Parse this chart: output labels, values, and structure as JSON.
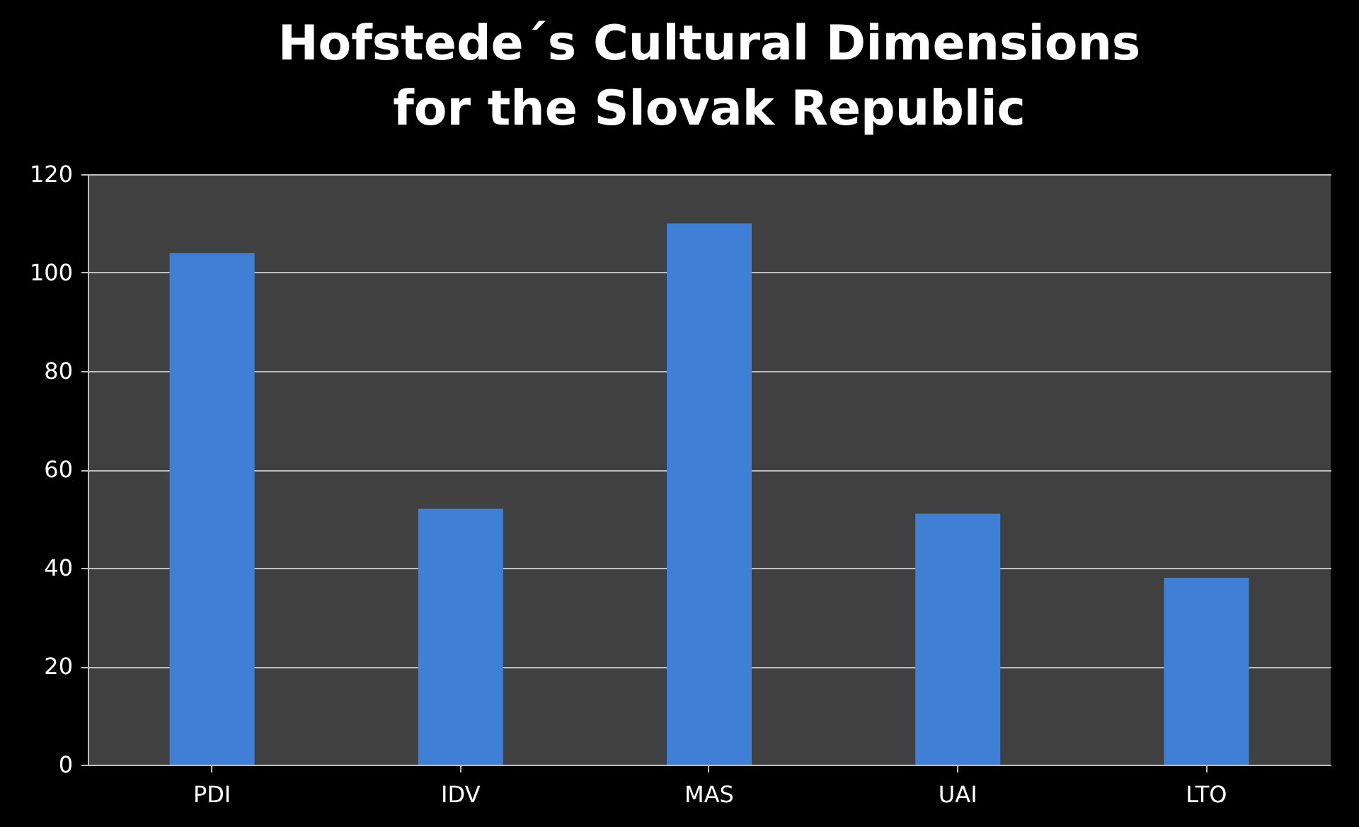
{
  "chart_data": {
    "type": "bar",
    "title": "Hofstede´s Cultural Dimensions for the Slovak Republic",
    "categories": [
      "PDI",
      "IDV",
      "MAS",
      "UAI",
      "LTO"
    ],
    "values": [
      104,
      52,
      110,
      51,
      38
    ],
    "color": "#3f7fd6",
    "ylim": [
      0,
      120
    ],
    "yticks": [
      0,
      20,
      40,
      60,
      80,
      100,
      120
    ],
    "grid": "y"
  }
}
